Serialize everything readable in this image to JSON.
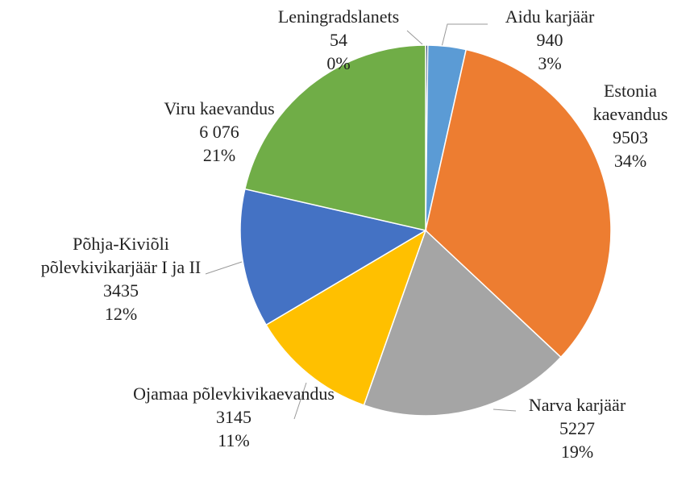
{
  "chart_data": {
    "type": "pie",
    "categories": [
      "Leningradslanets",
      "Aidu karjäär",
      "Estonia kaevandus",
      "Narva karjäär",
      "Ojamaa põlevkivikaevandus",
      "Põhja-Kiviõli põlevkivikarjäär I ja II",
      "Viru kaevandus"
    ],
    "values": [
      54,
      940,
      9503,
      5227,
      3145,
      3435,
      6076
    ],
    "value_labels": [
      "54",
      "940",
      "9503",
      "5227",
      "3145",
      "3435",
      "6 076"
    ],
    "percent_labels": [
      "0%",
      "3%",
      "34%",
      "19%",
      "11%",
      "12%",
      "21%"
    ],
    "colors": [
      "#1f3864",
      "#5b9bd5",
      "#ed7d31",
      "#a5a5a5",
      "#ffc000",
      "#4472c4",
      "#70ad47"
    ]
  }
}
